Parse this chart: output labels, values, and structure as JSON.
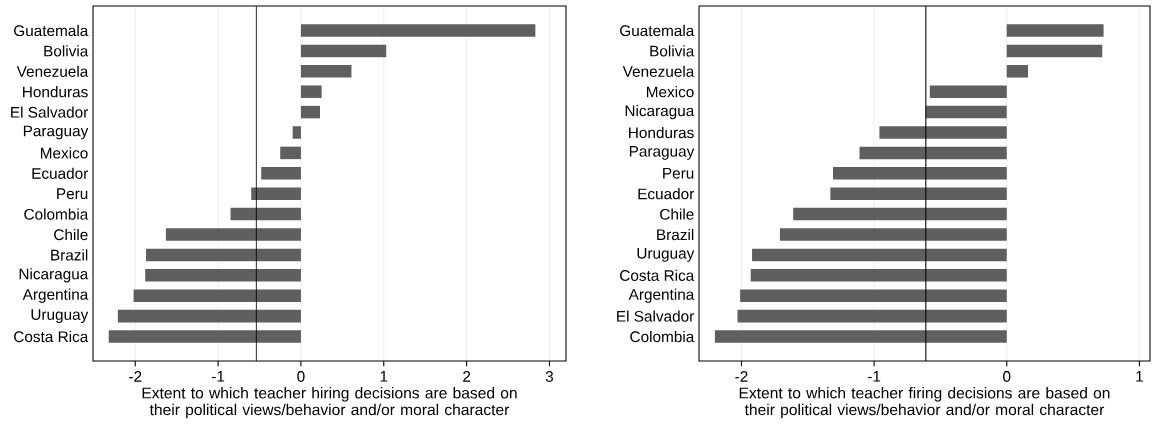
{
  "chart_data": [
    {
      "type": "bar",
      "orientation": "horizontal",
      "color": "#5f5f5f",
      "grid": "x",
      "categories": [
        "Guatemala",
        "Bolivia",
        "Venezuela",
        "Honduras",
        "El Salvador",
        "Paraguay",
        "Mexico",
        "Ecuador",
        "Peru",
        "Colombia",
        "Chile",
        "Brazil",
        "Nicaragua",
        "Argentina",
        "Uruguay",
        "Costa Rica"
      ],
      "values": [
        2.83,
        1.03,
        0.61,
        0.25,
        0.23,
        -0.1,
        -0.25,
        -0.48,
        -0.6,
        -0.85,
        -1.63,
        -1.87,
        -1.88,
        -2.02,
        -2.21,
        -2.32
      ],
      "xlim": [
        -2.51,
        3.2
      ],
      "xticks": [
        -2,
        -1,
        0,
        1,
        2,
        3
      ],
      "xlabel": "Extent to which teacher hiring decisions are based on their political views/behavior and/or moral character",
      "ref_lines": [
        {
          "axis": "x",
          "value": -0.54,
          "color": "#000000"
        }
      ]
    },
    {
      "type": "bar",
      "orientation": "horizontal",
      "color": "#5f5f5f",
      "grid": "x",
      "categories": [
        "Guatemala",
        "Bolivia",
        "Venezuela",
        "Mexico",
        "Nicaragua",
        "Honduras",
        "Paraguay",
        "Peru",
        "Ecuador",
        "Chile",
        "Brazil",
        "Uruguay",
        "Costa Rica",
        "Argentina",
        "El Salvador",
        "Colombia"
      ],
      "values": [
        0.73,
        0.72,
        0.16,
        -0.58,
        -0.61,
        -0.96,
        -1.11,
        -1.31,
        -1.33,
        -1.61,
        -1.71,
        -1.92,
        -1.93,
        -2.01,
        -2.03,
        -2.2
      ],
      "xlim": [
        -2.32,
        1.08
      ],
      "xticks": [
        -2,
        -1,
        0,
        1
      ],
      "xlabel": "Extent to which teacher firing decisions are based on their political views/behavior and/or moral character",
      "ref_lines": [
        {
          "axis": "x",
          "value": -0.61,
          "color": "#000000"
        }
      ]
    }
  ]
}
